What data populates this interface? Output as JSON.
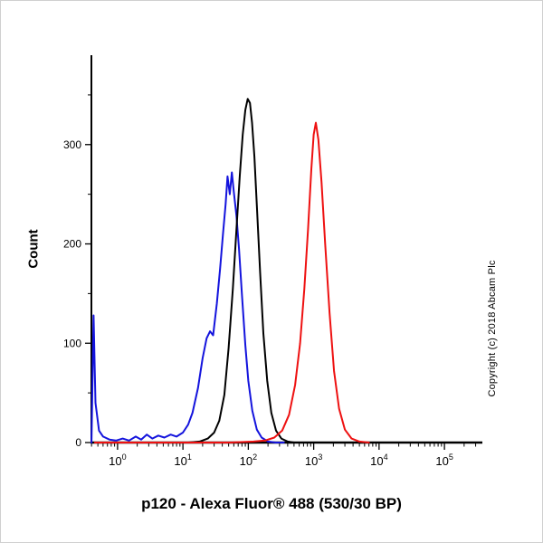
{
  "copyright": "Copyright (c) 2018 Abcam Plc",
  "chart_data": {
    "type": "line",
    "title": "p120 - Alexa Fluor® 488 (530/30 BP)",
    "ylabel": "Count",
    "xlabel": "",
    "x_scale": "log",
    "x_range_log": [
      -0.4,
      5.58
    ],
    "x_tick_exponents": [
      0,
      1,
      2,
      3,
      4,
      5
    ],
    "x_tick_base": "10",
    "y_ticks": [
      0,
      100,
      200,
      300
    ],
    "y_minor_ticks": [
      50,
      150,
      250,
      350
    ],
    "ylim": [
      0,
      390
    ],
    "grid": "off",
    "legend": "none",
    "axis_color": "#000000",
    "series": [
      {
        "name": "blue-histogram",
        "color": "#1414dd",
        "x": [
          0.4,
          0.43,
          0.46,
          0.52,
          0.6,
          0.75,
          0.95,
          1.2,
          1.5,
          1.9,
          2.3,
          2.8,
          3.4,
          4.2,
          5.2,
          6.5,
          8,
          10,
          12,
          14,
          17,
          20,
          23,
          26,
          29,
          33,
          37,
          41,
          45,
          48,
          52,
          56,
          60,
          66,
          72,
          80,
          90,
          100,
          115,
          135,
          160,
          200,
          260,
          350
        ],
        "y": [
          0,
          128,
          40,
          12,
          6,
          3,
          2,
          4,
          2,
          6,
          3,
          8,
          4,
          7,
          5,
          8,
          6,
          10,
          18,
          30,
          55,
          85,
          105,
          112,
          108,
          140,
          175,
          210,
          240,
          268,
          250,
          272,
          252,
          228,
          195,
          148,
          98,
          62,
          32,
          13,
          5,
          1,
          0,
          0
        ]
      },
      {
        "name": "black-histogram",
        "color": "#000000",
        "x": [
          12,
          18,
          24,
          30,
          36,
          43,
          50,
          58,
          66,
          74,
          82,
          90,
          98,
          106,
          114,
          124,
          136,
          152,
          170,
          195,
          225,
          265,
          320,
          400,
          500
        ],
        "y": [
          0,
          1,
          4,
          10,
          22,
          48,
          95,
          155,
          215,
          268,
          310,
          335,
          346,
          342,
          322,
          288,
          235,
          170,
          110,
          62,
          30,
          12,
          4,
          1,
          0
        ]
      },
      {
        "name": "red-histogram",
        "color": "#ee1111",
        "x": [
          0.45,
          50,
          120,
          180,
          250,
          330,
          420,
          520,
          620,
          720,
          820,
          920,
          1000,
          1080,
          1180,
          1320,
          1500,
          1750,
          2050,
          2450,
          3000,
          3800,
          5000,
          7000
        ],
        "y": [
          0,
          0,
          1,
          2,
          5,
          12,
          28,
          58,
          100,
          155,
          215,
          275,
          310,
          322,
          305,
          262,
          200,
          130,
          72,
          34,
          13,
          4,
          1,
          0
        ]
      }
    ]
  }
}
